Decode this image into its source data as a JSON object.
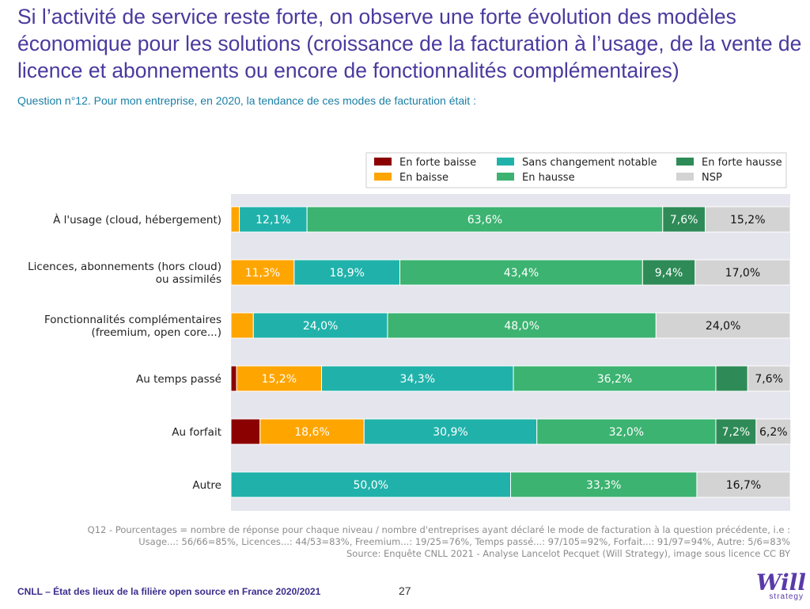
{
  "title": "Si l’activité de service reste forte, on observe une forte évolution des modèles économique pour les solutions (croissance de la facturation à l’usage, de la vente de licence et abonnements ou encore de fonctionnalités complémentaires)",
  "question": "Question n°12. Pour mon entreprise, en 2020, la tendance de ces modes de facturation était :",
  "notes": [
    "Q12 - Pourcentages = nombre de réponse pour chaque niveau / nombre d'entreprises ayant déclaré le mode de facturation à la question précédente, i.e :",
    "Usage...: 56/66=85%, Licences...: 44/53=83%, Freemium...: 19/25=76%, Temps passé...: 97/105=92%, Forfait...: 91/97=94%, Autre: 5/6=83%",
    "Source: Enquête CNLL 2021 - Analyse Lancelot Pecquet (Will Strategy), image sous licence CC BY"
  ],
  "footer": "CNLL – État des lieux de la filière open source en France 2020/2021",
  "page_number": "27",
  "logo": {
    "word": "Will",
    "sub": "strategy"
  },
  "chart_data": {
    "type": "bar",
    "orientation": "horizontal",
    "stacked": true,
    "xlim": [
      0,
      100
    ],
    "legend_placement": "top-right",
    "categories": [
      [
        "À l'usage (cloud, hébergement)"
      ],
      [
        "Licences, abonnements (hors cloud)",
        "ou assimilés"
      ],
      [
        "Fonctionnalités complémentaires",
        "(freemium, open core...)"
      ],
      [
        "Au temps passé"
      ],
      [
        "Au forfait"
      ],
      [
        "Autre"
      ]
    ],
    "series": [
      {
        "name": "En forte baisse",
        "color": "#8b0000",
        "values": [
          0,
          0,
          0,
          1.0,
          5.2,
          0
        ],
        "labels": [
          "",
          "",
          "",
          "",
          "",
          ""
        ]
      },
      {
        "name": "En baisse",
        "color": "#ffa500",
        "values": [
          1.5,
          11.3,
          4.0,
          15.2,
          18.6,
          0
        ],
        "labels": [
          "",
          "11,3%",
          "",
          "15,2%",
          "18,6%",
          ""
        ]
      },
      {
        "name": "Sans changement notable",
        "color": "#20b2aa",
        "values": [
          12.1,
          18.9,
          24.0,
          34.3,
          30.9,
          50.0
        ],
        "labels": [
          "12,1%",
          "18,9%",
          "24,0%",
          "34,3%",
          "30,9%",
          "50,0%"
        ]
      },
      {
        "name": "En hausse",
        "color": "#3cb371",
        "values": [
          63.6,
          43.4,
          48.0,
          36.2,
          32.0,
          33.3
        ],
        "labels": [
          "63,6%",
          "43,4%",
          "48,0%",
          "36,2%",
          "32,0%",
          "33,3%"
        ]
      },
      {
        "name": "En forte hausse",
        "color": "#2e8b57",
        "values": [
          7.6,
          9.4,
          0,
          5.7,
          7.2,
          0
        ],
        "labels": [
          "7,6%",
          "9,4%",
          "",
          "",
          "7,2%",
          ""
        ]
      },
      {
        "name": "NSP",
        "color": "#d3d3d3",
        "values": [
          15.2,
          17.0,
          24.0,
          7.6,
          6.2,
          16.7
        ],
        "labels": [
          "15,2%",
          "17,0%",
          "24,0%",
          "7,6%",
          "6,2%",
          "16,7%"
        ]
      }
    ],
    "legend_order": [
      "En forte baisse",
      "Sans changement notable",
      "En forte hausse",
      "En baisse",
      "En hausse",
      "NSP"
    ],
    "plot_background": "#e5e5ee"
  }
}
